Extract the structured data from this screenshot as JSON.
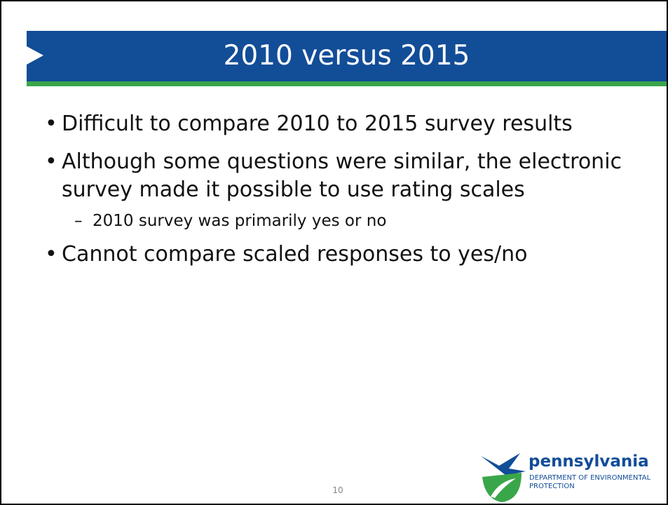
{
  "header": {
    "title": "2010 versus 2015"
  },
  "bullets": [
    {
      "text": "Difficult to compare 2010 to 2015 survey results"
    },
    {
      "text": "Although some questions were similar, the electronic survey made it possible to use rating scales"
    },
    {
      "text": "2010 survey was primarily yes or no"
    },
    {
      "text": "Cannot compare scaled responses to yes/no"
    }
  ],
  "footer": {
    "page": "10",
    "brand": "pennsylvania",
    "department": "DEPARTMENT OF ENVIRONMENTAL PROTECTION"
  }
}
